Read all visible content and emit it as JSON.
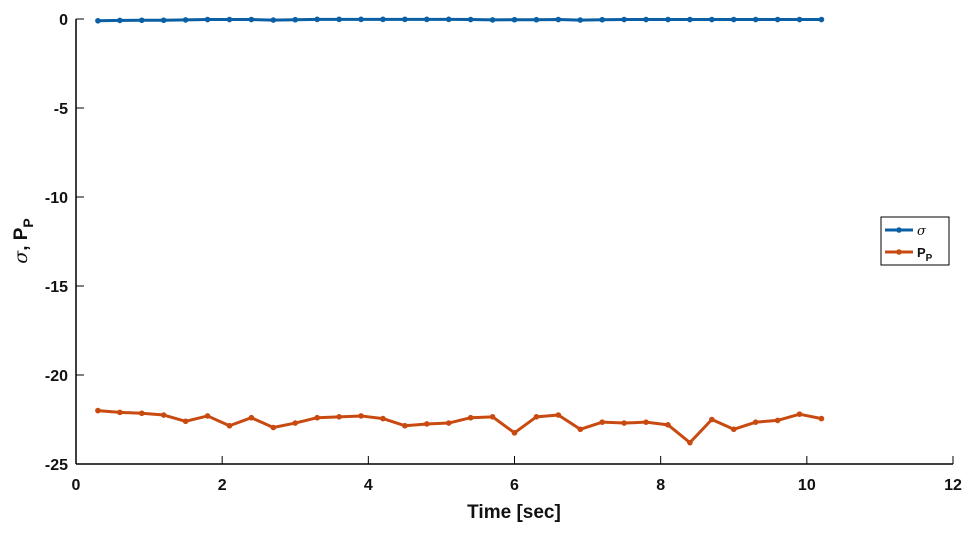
{
  "chart_data": {
    "type": "line",
    "xlabel": "Time [sec]",
    "ylabel": "σ, P_P",
    "ylabel_parts": {
      "sym": "σ",
      "sep": ", ",
      "main": "P",
      "sub": "P"
    },
    "xlim": [
      0,
      12
    ],
    "ylim": [
      -25,
      0
    ],
    "xticks": [
      "0",
      "2",
      "4",
      "6",
      "8",
      "10",
      "12"
    ],
    "yticks": [
      "0",
      "-5",
      "-10",
      "-15",
      "-20",
      "-25"
    ],
    "grid": false,
    "legend_position": "right",
    "x": [
      0.3,
      0.6,
      0.9,
      1.2,
      1.5,
      1.8,
      2.1,
      2.4,
      2.7,
      3.0,
      3.3,
      3.6,
      3.9,
      4.2,
      4.5,
      4.8,
      5.1,
      5.4,
      5.7,
      6.0,
      6.3,
      6.6,
      6.9,
      7.2,
      7.5,
      7.8,
      8.1,
      8.4,
      8.7,
      9.0,
      9.3,
      9.6,
      9.9,
      10.2
    ],
    "series": [
      {
        "name": "σ",
        "legend_main": "σ",
        "legend_sub": "",
        "color": "#0b5fa5",
        "values": [
          -0.1,
          -0.08,
          -0.07,
          -0.07,
          -0.05,
          -0.03,
          -0.03,
          -0.03,
          -0.06,
          -0.04,
          -0.02,
          -0.02,
          -0.02,
          -0.02,
          -0.02,
          -0.02,
          -0.02,
          -0.03,
          -0.05,
          -0.04,
          -0.04,
          -0.03,
          -0.06,
          -0.04,
          -0.03,
          -0.03,
          -0.03,
          -0.03,
          -0.03,
          -0.03,
          -0.03,
          -0.03,
          -0.03,
          -0.03
        ]
      },
      {
        "name": "P_P",
        "legend_main": "P",
        "legend_sub": "P",
        "color": "#c84a10",
        "values": [
          -22.0,
          -22.1,
          -22.15,
          -22.25,
          -22.6,
          -22.3,
          -22.85,
          -22.4,
          -22.95,
          -22.7,
          -22.4,
          -22.35,
          -22.3,
          -22.45,
          -22.85,
          -22.75,
          -22.7,
          -22.4,
          -22.35,
          -23.25,
          -22.35,
          -22.25,
          -23.05,
          -22.65,
          -22.7,
          -22.65,
          -22.8,
          -23.8,
          -22.5,
          -23.05,
          -22.65,
          -22.55,
          -22.2,
          -22.45
        ]
      }
    ]
  }
}
